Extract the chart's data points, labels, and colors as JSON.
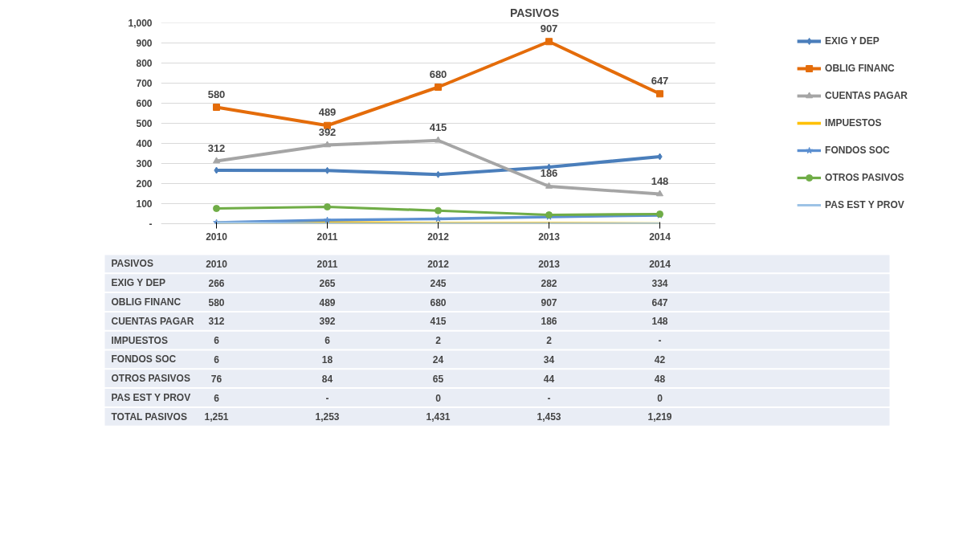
{
  "chart_data": {
    "type": "line",
    "title": "PASIVOS",
    "categories": [
      "2010",
      "2011",
      "2012",
      "2013",
      "2014"
    ],
    "ylim": [
      0,
      1000
    ],
    "yticks": [
      {
        "value": 0,
        "label": "-"
      },
      100,
      200,
      300,
      400,
      500,
      600,
      700,
      800,
      900,
      {
        "value": 1000,
        "label": "1,000"
      }
    ],
    "grid": "y",
    "legend": "right",
    "series": [
      {
        "name": "EXIG Y DEP",
        "color": "#4a7ebb",
        "marker": "diamond",
        "values": [
          266,
          265,
          245,
          282,
          334
        ],
        "value_labels": [
          "266",
          "265",
          "245",
          "282",
          "334"
        ]
      },
      {
        "name": "OBLIG FINANC",
        "color": "#e46c0a",
        "marker": "square",
        "values": [
          580,
          489,
          680,
          907,
          647
        ],
        "value_labels": [
          "580",
          "489",
          "680",
          "907",
          "647"
        ]
      },
      {
        "name": "CUENTAS PAGAR",
        "color": "#a5a5a5",
        "marker": "triangle",
        "values": [
          312,
          392,
          415,
          186,
          148
        ],
        "value_labels": [
          "312",
          "392",
          "415",
          "186",
          "148"
        ]
      },
      {
        "name": "IMPUESTOS",
        "color": "#ffc000",
        "marker": "none",
        "values": [
          6,
          6,
          2,
          2,
          0
        ],
        "value_labels": [
          "6",
          "6",
          "2",
          "2",
          "-"
        ]
      },
      {
        "name": "FONDOS SOC",
        "color": "#5b8fd0",
        "marker": "star",
        "values": [
          6,
          18,
          24,
          34,
          42
        ],
        "value_labels": [
          "6",
          "18",
          "24",
          "34",
          "42"
        ]
      },
      {
        "name": "OTROS PASIVOS",
        "color": "#70ad47",
        "marker": "circle",
        "values": [
          76,
          84,
          65,
          44,
          48
        ],
        "value_labels": [
          "76",
          "84",
          "65",
          "44",
          "48"
        ]
      },
      {
        "name": "PAS EST Y PROV",
        "color": "#9dc3e6",
        "marker": "none",
        "values": [
          6,
          0,
          0,
          0,
          0
        ],
        "value_labels": [
          "6",
          "-",
          "0",
          "-",
          "0"
        ]
      }
    ],
    "totals": [
      "1,251",
      "1,253",
      "1,431",
      "1,453",
      "1,219"
    ],
    "annotations": [
      "PASIVOS",
      "TOTAL PASIVOS",
      {
        "text": "580",
        "x": "2010",
        "y": 580
      },
      {
        "text": "489",
        "x": "2011",
        "y": 489
      },
      {
        "text": "680",
        "x": "2012",
        "y": 680
      },
      {
        "text": "907",
        "x": "2013",
        "y": 907
      },
      {
        "text": "647",
        "x": "2014",
        "y": 647
      },
      {
        "text": "312",
        "x": "2010",
        "y": 312
      },
      {
        "text": "392",
        "x": "2011",
        "y": 392
      },
      {
        "text": "415",
        "x": "2012",
        "y": 415
      },
      {
        "text": "186",
        "x": "2013",
        "y": 186
      },
      {
        "text": "148",
        "x": "2014",
        "y": 148
      }
    ]
  }
}
